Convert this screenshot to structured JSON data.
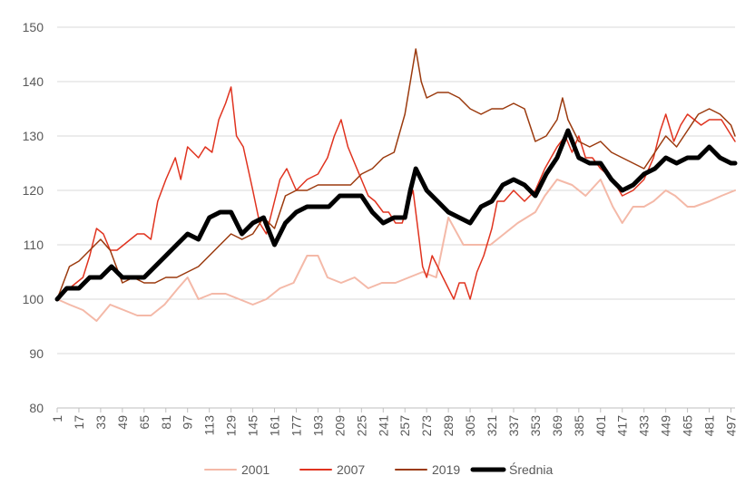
{
  "chart_data": {
    "type": "line",
    "title": "",
    "xlabel": "",
    "ylabel": "",
    "ylim": [
      80,
      150
    ],
    "yticks": [
      80,
      90,
      100,
      110,
      120,
      130,
      140,
      150
    ],
    "xlim": [
      1,
      500
    ],
    "xticks": [
      1,
      17,
      33,
      49,
      65,
      81,
      97,
      113,
      129,
      145,
      161,
      177,
      193,
      209,
      225,
      241,
      257,
      273,
      289,
      305,
      321,
      337,
      353,
      369,
      385,
      401,
      417,
      433,
      449,
      465,
      481,
      497
    ],
    "grid": "horizontal",
    "legend_position": "bottom",
    "series": [
      {
        "name": "2001",
        "color": "#f4b9a8",
        "width": 2,
        "points": [
          [
            1,
            100
          ],
          [
            10,
            99
          ],
          [
            20,
            98
          ],
          [
            30,
            96
          ],
          [
            40,
            99
          ],
          [
            50,
            98
          ],
          [
            60,
            97
          ],
          [
            70,
            97
          ],
          [
            80,
            99
          ],
          [
            90,
            102
          ],
          [
            97,
            104
          ],
          [
            105,
            100
          ],
          [
            115,
            101
          ],
          [
            125,
            101
          ],
          [
            135,
            100
          ],
          [
            145,
            99
          ],
          [
            155,
            100
          ],
          [
            165,
            102
          ],
          [
            175,
            103
          ],
          [
            185,
            108
          ],
          [
            193,
            108
          ],
          [
            200,
            104
          ],
          [
            210,
            103
          ],
          [
            220,
            104
          ],
          [
            230,
            102
          ],
          [
            240,
            103
          ],
          [
            250,
            103
          ],
          [
            260,
            104
          ],
          [
            270,
            105
          ],
          [
            280,
            104
          ],
          [
            289,
            115
          ],
          [
            300,
            110
          ],
          [
            310,
            110
          ],
          [
            320,
            110
          ],
          [
            330,
            112
          ],
          [
            340,
            114
          ],
          [
            353,
            116
          ],
          [
            360,
            119
          ],
          [
            369,
            122
          ],
          [
            380,
            121
          ],
          [
            390,
            119
          ],
          [
            401,
            122
          ],
          [
            410,
            117
          ],
          [
            417,
            114
          ],
          [
            425,
            117
          ],
          [
            433,
            117
          ],
          [
            440,
            118
          ],
          [
            449,
            120
          ],
          [
            456,
            119
          ],
          [
            465,
            117
          ],
          [
            470,
            117
          ],
          [
            481,
            118
          ],
          [
            490,
            119
          ],
          [
            500,
            120
          ]
        ]
      },
      {
        "name": "2007",
        "color": "#e0331f",
        "width": 1.5,
        "points": [
          [
            1,
            100
          ],
          [
            10,
            102
          ],
          [
            20,
            104
          ],
          [
            25,
            108
          ],
          [
            30,
            113
          ],
          [
            35,
            112
          ],
          [
            40,
            109
          ],
          [
            45,
            109
          ],
          [
            50,
            110
          ],
          [
            55,
            111
          ],
          [
            60,
            112
          ],
          [
            65,
            112
          ],
          [
            70,
            111
          ],
          [
            75,
            118
          ],
          [
            81,
            122
          ],
          [
            88,
            126
          ],
          [
            92,
            122
          ],
          [
            97,
            128
          ],
          [
            105,
            126
          ],
          [
            110,
            128
          ],
          [
            115,
            127
          ],
          [
            120,
            133
          ],
          [
            125,
            136
          ],
          [
            129,
            139
          ],
          [
            133,
            130
          ],
          [
            138,
            128
          ],
          [
            145,
            120
          ],
          [
            150,
            114
          ],
          [
            155,
            112
          ],
          [
            161,
            118
          ],
          [
            165,
            122
          ],
          [
            170,
            124
          ],
          [
            177,
            120
          ],
          [
            185,
            122
          ],
          [
            193,
            123
          ],
          [
            200,
            126
          ],
          [
            205,
            130
          ],
          [
            210,
            133
          ],
          [
            215,
            128
          ],
          [
            220,
            125
          ],
          [
            225,
            122
          ],
          [
            230,
            119
          ],
          [
            235,
            118
          ],
          [
            241,
            116
          ],
          [
            245,
            116
          ],
          [
            250,
            114
          ],
          [
            255,
            114
          ],
          [
            260,
            118
          ],
          [
            263,
            120
          ],
          [
            267,
            112
          ],
          [
            270,
            106
          ],
          [
            273,
            104
          ],
          [
            277,
            108
          ],
          [
            281,
            106
          ],
          [
            285,
            104
          ],
          [
            289,
            102
          ],
          [
            293,
            100
          ],
          [
            297,
            103
          ],
          [
            301,
            103
          ],
          [
            305,
            100
          ],
          [
            310,
            105
          ],
          [
            315,
            108
          ],
          [
            321,
            113
          ],
          [
            325,
            118
          ],
          [
            330,
            118
          ],
          [
            337,
            120
          ],
          [
            345,
            118
          ],
          [
            353,
            120
          ],
          [
            360,
            124
          ],
          [
            369,
            128
          ],
          [
            375,
            130
          ],
          [
            380,
            127
          ],
          [
            385,
            130
          ],
          [
            390,
            126
          ],
          [
            395,
            126
          ],
          [
            401,
            124
          ],
          [
            410,
            122
          ],
          [
            417,
            119
          ],
          [
            425,
            120
          ],
          [
            433,
            122
          ],
          [
            440,
            126
          ],
          [
            445,
            131
          ],
          [
            449,
            134
          ],
          [
            455,
            129
          ],
          [
            460,
            132
          ],
          [
            465,
            134
          ],
          [
            470,
            133
          ],
          [
            475,
            132
          ],
          [
            481,
            133
          ],
          [
            485,
            133
          ],
          [
            490,
            133
          ],
          [
            495,
            131
          ],
          [
            500,
            129
          ]
        ]
      },
      {
        "name": "2019",
        "color": "#9b3a0e",
        "width": 1.5,
        "points": [
          [
            1,
            100
          ],
          [
            10,
            106
          ],
          [
            17,
            107
          ],
          [
            25,
            109
          ],
          [
            33,
            111
          ],
          [
            40,
            109
          ],
          [
            49,
            103
          ],
          [
            57,
            104
          ],
          [
            65,
            103
          ],
          [
            73,
            103
          ],
          [
            81,
            104
          ],
          [
            89,
            104
          ],
          [
            97,
            105
          ],
          [
            105,
            106
          ],
          [
            113,
            108
          ],
          [
            121,
            110
          ],
          [
            129,
            112
          ],
          [
            137,
            111
          ],
          [
            145,
            112
          ],
          [
            153,
            115
          ],
          [
            161,
            113
          ],
          [
            169,
            119
          ],
          [
            177,
            120
          ],
          [
            185,
            120
          ],
          [
            193,
            121
          ],
          [
            201,
            121
          ],
          [
            209,
            121
          ],
          [
            217,
            121
          ],
          [
            225,
            123
          ],
          [
            233,
            124
          ],
          [
            241,
            126
          ],
          [
            249,
            127
          ],
          [
            257,
            134
          ],
          [
            261,
            140
          ],
          [
            265,
            146
          ],
          [
            269,
            140
          ],
          [
            273,
            137
          ],
          [
            281,
            138
          ],
          [
            289,
            138
          ],
          [
            297,
            137
          ],
          [
            305,
            135
          ],
          [
            313,
            134
          ],
          [
            321,
            135
          ],
          [
            329,
            135
          ],
          [
            337,
            136
          ],
          [
            345,
            135
          ],
          [
            353,
            129
          ],
          [
            361,
            130
          ],
          [
            369,
            133
          ],
          [
            373,
            137
          ],
          [
            377,
            133
          ],
          [
            385,
            129
          ],
          [
            393,
            128
          ],
          [
            401,
            129
          ],
          [
            409,
            127
          ],
          [
            417,
            126
          ],
          [
            425,
            125
          ],
          [
            433,
            124
          ],
          [
            441,
            127
          ],
          [
            449,
            130
          ],
          [
            457,
            128
          ],
          [
            465,
            131
          ],
          [
            473,
            134
          ],
          [
            481,
            135
          ],
          [
            489,
            134
          ],
          [
            497,
            132
          ],
          [
            500,
            130
          ]
        ]
      },
      {
        "name": "Średnia",
        "color": "#000000",
        "width": 5,
        "points": [
          [
            1,
            100
          ],
          [
            8,
            102
          ],
          [
            17,
            102
          ],
          [
            25,
            104
          ],
          [
            33,
            104
          ],
          [
            41,
            106
          ],
          [
            49,
            104
          ],
          [
            57,
            104
          ],
          [
            65,
            104
          ],
          [
            73,
            106
          ],
          [
            81,
            108
          ],
          [
            89,
            110
          ],
          [
            97,
            112
          ],
          [
            105,
            111
          ],
          [
            113,
            115
          ],
          [
            121,
            116
          ],
          [
            129,
            116
          ],
          [
            137,
            112
          ],
          [
            145,
            114
          ],
          [
            153,
            115
          ],
          [
            161,
            110
          ],
          [
            169,
            114
          ],
          [
            177,
            116
          ],
          [
            185,
            117
          ],
          [
            193,
            117
          ],
          [
            201,
            117
          ],
          [
            209,
            119
          ],
          [
            217,
            119
          ],
          [
            225,
            119
          ],
          [
            233,
            116
          ],
          [
            241,
            114
          ],
          [
            249,
            115
          ],
          [
            257,
            115
          ],
          [
            261,
            120
          ],
          [
            265,
            124
          ],
          [
            273,
            120
          ],
          [
            281,
            118
          ],
          [
            289,
            116
          ],
          [
            297,
            115
          ],
          [
            305,
            114
          ],
          [
            313,
            117
          ],
          [
            321,
            118
          ],
          [
            329,
            121
          ],
          [
            337,
            122
          ],
          [
            345,
            121
          ],
          [
            353,
            119
          ],
          [
            361,
            123
          ],
          [
            369,
            126
          ],
          [
            377,
            131
          ],
          [
            385,
            126
          ],
          [
            393,
            125
          ],
          [
            401,
            125
          ],
          [
            409,
            122
          ],
          [
            417,
            120
          ],
          [
            425,
            121
          ],
          [
            433,
            123
          ],
          [
            441,
            124
          ],
          [
            449,
            126
          ],
          [
            457,
            125
          ],
          [
            465,
            126
          ],
          [
            473,
            126
          ],
          [
            481,
            128
          ],
          [
            489,
            126
          ],
          [
            497,
            125
          ],
          [
            500,
            125
          ]
        ]
      }
    ]
  }
}
